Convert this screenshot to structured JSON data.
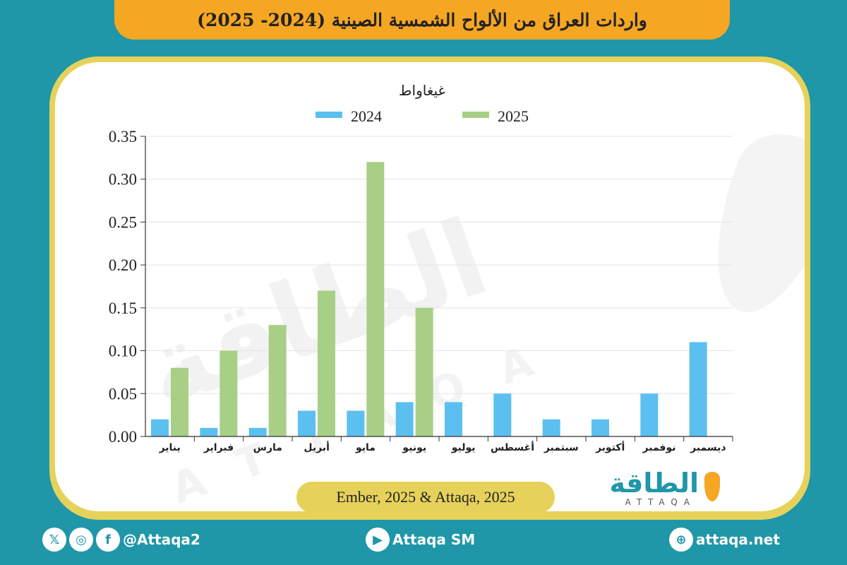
{
  "header": {
    "title": "واردات العراق من الألواح الشمسية الصينية (2024- 2025)"
  },
  "chart_data": {
    "type": "bar",
    "unit_label": "غيغاواط",
    "categories": [
      "يناير",
      "فبراير",
      "مارس",
      "أبريل",
      "مايو",
      "يونيو",
      "يوليو",
      "أغسطس",
      "سبتمبر",
      "أكتوبر",
      "نوفمبر",
      "ديسمبر"
    ],
    "series": [
      {
        "name": "2024",
        "color": "#5bc0f0",
        "values": [
          0.02,
          0.01,
          0.01,
          0.03,
          0.03,
          0.04,
          0.04,
          0.05,
          0.02,
          0.02,
          0.05,
          0.11
        ]
      },
      {
        "name": "2025",
        "color": "#a7cf86",
        "values": [
          0.08,
          0.1,
          0.13,
          0.17,
          0.32,
          0.15,
          null,
          null,
          null,
          null,
          null,
          null
        ]
      }
    ],
    "ylim": [
      0,
      0.35
    ],
    "yticks": [
      "0.00",
      "0.05",
      "0.10",
      "0.15",
      "0.20",
      "0.25",
      "0.30",
      "0.35"
    ],
    "legend_position": "top-center",
    "grid": true
  },
  "source": {
    "text": "Ember, 2025 & Attaqa, 2025"
  },
  "brand": {
    "arabic": "الطاقة",
    "latin": "ATTAQA",
    "watermark_arabic": "الطاقة",
    "watermark_latin": "ATTAQA"
  },
  "footer": {
    "social_handle": "@Attaqa2",
    "youtube": "Attaqa SM",
    "website": "attaqa.net",
    "icons": [
      "x-icon",
      "instagram-icon",
      "facebook-icon",
      "youtube-icon",
      "globe-icon"
    ]
  }
}
